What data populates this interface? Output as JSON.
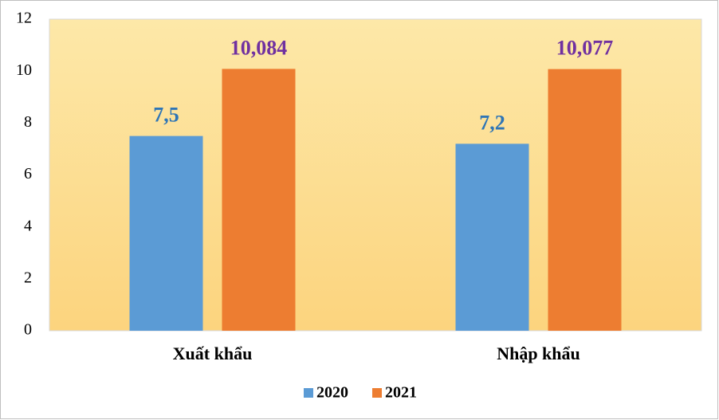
{
  "chart_data": {
    "type": "bar",
    "categories": [
      "Xuất khẩu",
      "Nhập khẩu"
    ],
    "series": [
      {
        "name": "2020",
        "color": "#5b9bd5",
        "label_color": "#2e75b6",
        "values": [
          7.5,
          7.2
        ],
        "value_labels": [
          "7,5",
          "7,2"
        ]
      },
      {
        "name": "2021",
        "color": "#ed7d31",
        "label_color": "#7030a0",
        "values": [
          10.084,
          10.077
        ],
        "value_labels": [
          "10,084",
          "10,077"
        ]
      }
    ],
    "ylim": [
      0,
      12
    ],
    "yticks": [
      0,
      2,
      4,
      6,
      8,
      10,
      12
    ],
    "grid": false,
    "legend": "bottom"
  }
}
